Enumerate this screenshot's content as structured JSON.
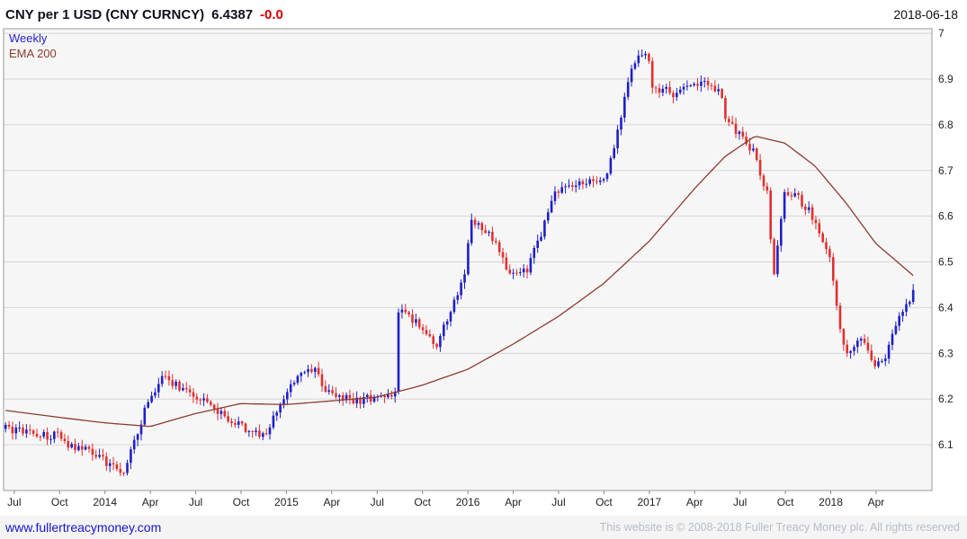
{
  "header": {
    "title": "CNY per 1 USD (CNY CURNCY)",
    "price": "6.4387",
    "change": "-0.0",
    "date": "2018-06-18"
  },
  "legend": {
    "timeframe": "Weekly",
    "overlay": "EMA 200"
  },
  "footer": {
    "link": "www.fullertreacymoney.com",
    "copyright": "This website is © 2008-2018 Fuller Treacy Money plc. All rights reserved"
  },
  "chart_data": {
    "type": "candlestick",
    "title": "CNY per 1 USD (CNY CURNCY)",
    "timeframe": "Weekly",
    "overlay": "EMA 200",
    "last_price": 6.4387,
    "ylim": [
      6.0,
      7.01
    ],
    "y_ticks": [
      "6.1",
      "6.2",
      "6.3",
      "6.4",
      "6.5",
      "6.6",
      "6.7",
      "6.8",
      "6.9",
      "7"
    ],
    "x_domain": [
      "2013-06-10",
      "2018-07-22"
    ],
    "x_ticks": [
      {
        "label": "Jul",
        "date": "2013-07-01"
      },
      {
        "label": "Oct",
        "date": "2013-10-01"
      },
      {
        "label": "2014",
        "date": "2014-01-01"
      },
      {
        "label": "Apr",
        "date": "2014-04-01"
      },
      {
        "label": "Jul",
        "date": "2014-07-01"
      },
      {
        "label": "Oct",
        "date": "2014-10-01"
      },
      {
        "label": "2015",
        "date": "2015-01-01"
      },
      {
        "label": "Apr",
        "date": "2015-04-01"
      },
      {
        "label": "Jul",
        "date": "2015-07-01"
      },
      {
        "label": "Oct",
        "date": "2015-10-01"
      },
      {
        "label": "2016",
        "date": "2016-01-01"
      },
      {
        "label": "Apr",
        "date": "2016-04-01"
      },
      {
        "label": "Jul",
        "date": "2016-07-01"
      },
      {
        "label": "Oct",
        "date": "2016-10-01"
      },
      {
        "label": "2017",
        "date": "2017-01-01"
      },
      {
        "label": "Apr",
        "date": "2017-04-01"
      },
      {
        "label": "Jul",
        "date": "2017-07-01"
      },
      {
        "label": "Oct",
        "date": "2017-10-01"
      },
      {
        "label": "2018",
        "date": "2018-01-01"
      },
      {
        "label": "Apr",
        "date": "2018-04-01"
      }
    ],
    "bars": {
      "start": "2013-06-14",
      "end": "2018-06-15",
      "interval_days": 7
    },
    "weekly_close_anchors": [
      {
        "d": "2013-06-14",
        "c": 6.135
      },
      {
        "d": "2013-07-26",
        "c": 6.128
      },
      {
        "d": "2013-08-30",
        "c": 6.12
      },
      {
        "d": "2013-09-27",
        "c": 6.121
      },
      {
        "d": "2013-10-25",
        "c": 6.095
      },
      {
        "d": "2013-11-29",
        "c": 6.09
      },
      {
        "d": "2013-12-27",
        "c": 6.068
      },
      {
        "d": "2014-01-17",
        "c": 6.052
      },
      {
        "d": "2014-02-07",
        "c": 6.04
      },
      {
        "d": "2014-02-28",
        "c": 6.1
      },
      {
        "d": "2014-03-21",
        "c": 6.18
      },
      {
        "d": "2014-04-25",
        "c": 6.245
      },
      {
        "d": "2014-05-23",
        "c": 6.232
      },
      {
        "d": "2014-06-27",
        "c": 6.21
      },
      {
        "d": "2014-07-25",
        "c": 6.188
      },
      {
        "d": "2014-08-29",
        "c": 6.16
      },
      {
        "d": "2014-09-26",
        "c": 6.15
      },
      {
        "d": "2014-10-24",
        "c": 6.12
      },
      {
        "d": "2014-11-21",
        "c": 6.13
      },
      {
        "d": "2014-12-26",
        "c": 6.2
      },
      {
        "d": "2015-01-23",
        "c": 6.25
      },
      {
        "d": "2015-02-27",
        "c": 6.262
      },
      {
        "d": "2015-03-20",
        "c": 6.22
      },
      {
        "d": "2015-04-24",
        "c": 6.2
      },
      {
        "d": "2015-05-29",
        "c": 6.198
      },
      {
        "d": "2015-06-26",
        "c": 6.205
      },
      {
        "d": "2015-08-07",
        "c": 6.21
      },
      {
        "d": "2015-08-14",
        "c": 6.395
      },
      {
        "d": "2015-08-28",
        "c": 6.386
      },
      {
        "d": "2015-09-25",
        "c": 6.362
      },
      {
        "d": "2015-10-30",
        "c": 6.318
      },
      {
        "d": "2015-11-27",
        "c": 6.39
      },
      {
        "d": "2015-12-25",
        "c": 6.478
      },
      {
        "d": "2016-01-08",
        "c": 6.59
      },
      {
        "d": "2016-01-29",
        "c": 6.576
      },
      {
        "d": "2016-02-26",
        "c": 6.54
      },
      {
        "d": "2016-03-25",
        "c": 6.47
      },
      {
        "d": "2016-04-29",
        "c": 6.48
      },
      {
        "d": "2016-05-27",
        "c": 6.565
      },
      {
        "d": "2016-06-24",
        "c": 6.655
      },
      {
        "d": "2016-07-29",
        "c": 6.662
      },
      {
        "d": "2016-08-26",
        "c": 6.676
      },
      {
        "d": "2016-09-30",
        "c": 6.67
      },
      {
        "d": "2016-10-28",
        "c": 6.78
      },
      {
        "d": "2016-11-25",
        "c": 6.92
      },
      {
        "d": "2016-12-16",
        "c": 6.96
      },
      {
        "d": "2016-12-30",
        "c": 6.945
      },
      {
        "d": "2017-01-06",
        "c": 6.875
      },
      {
        "d": "2017-01-27",
        "c": 6.88
      },
      {
        "d": "2017-02-24",
        "c": 6.866
      },
      {
        "d": "2017-03-31",
        "c": 6.89
      },
      {
        "d": "2017-04-28",
        "c": 6.894
      },
      {
        "d": "2017-05-26",
        "c": 6.862
      },
      {
        "d": "2017-06-02",
        "c": 6.81
      },
      {
        "d": "2017-06-30",
        "c": 6.78
      },
      {
        "d": "2017-07-28",
        "c": 6.74
      },
      {
        "d": "2017-08-25",
        "c": 6.65
      },
      {
        "d": "2017-09-08",
        "c": 6.47
      },
      {
        "d": "2017-09-29",
        "c": 6.645
      },
      {
        "d": "2017-10-27",
        "c": 6.64
      },
      {
        "d": "2017-11-24",
        "c": 6.602
      },
      {
        "d": "2017-12-29",
        "c": 6.51
      },
      {
        "d": "2018-01-26",
        "c": 6.32
      },
      {
        "d": "2018-02-09",
        "c": 6.298
      },
      {
        "d": "2018-03-02",
        "c": 6.33
      },
      {
        "d": "2018-03-30",
        "c": 6.276
      },
      {
        "d": "2018-04-20",
        "c": 6.28
      },
      {
        "d": "2018-04-27",
        "c": 6.33
      },
      {
        "d": "2018-05-25",
        "c": 6.392
      },
      {
        "d": "2018-06-08",
        "c": 6.42
      },
      {
        "d": "2018-06-15",
        "c": 6.4387
      }
    ],
    "ema_anchors": [
      {
        "d": "2013-06-14",
        "v": 6.175
      },
      {
        "d": "2013-09-30",
        "v": 6.16
      },
      {
        "d": "2013-12-31",
        "v": 6.148
      },
      {
        "d": "2014-03-31",
        "v": 6.14
      },
      {
        "d": "2014-06-30",
        "v": 6.168
      },
      {
        "d": "2014-09-30",
        "v": 6.19
      },
      {
        "d": "2014-12-31",
        "v": 6.188
      },
      {
        "d": "2015-03-31",
        "v": 6.196
      },
      {
        "d": "2015-06-30",
        "v": 6.204
      },
      {
        "d": "2015-09-30",
        "v": 6.23
      },
      {
        "d": "2015-12-31",
        "v": 6.265
      },
      {
        "d": "2016-03-31",
        "v": 6.32
      },
      {
        "d": "2016-06-30",
        "v": 6.38
      },
      {
        "d": "2016-09-30",
        "v": 6.452
      },
      {
        "d": "2016-12-31",
        "v": 6.545
      },
      {
        "d": "2017-03-31",
        "v": 6.66
      },
      {
        "d": "2017-05-31",
        "v": 6.73
      },
      {
        "d": "2017-07-31",
        "v": 6.775
      },
      {
        "d": "2017-09-30",
        "v": 6.76
      },
      {
        "d": "2017-11-30",
        "v": 6.71
      },
      {
        "d": "2018-01-31",
        "v": 6.63
      },
      {
        "d": "2018-03-31",
        "v": 6.54
      },
      {
        "d": "2018-06-15",
        "v": 6.47
      }
    ],
    "colors": {
      "up": "#1f1fc8",
      "down": "#e03030",
      "ema": "#8c3b2e",
      "grid": "#d6d6d6",
      "plot_bg": "#f6f6f6",
      "border": "#9a9a9a",
      "change_negative": "#d40000",
      "link": "#1414d2"
    }
  }
}
